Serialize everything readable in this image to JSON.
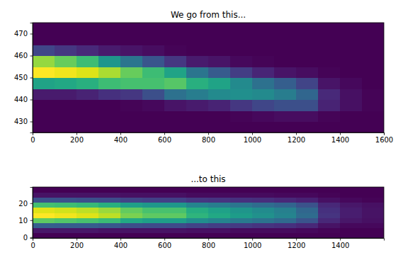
{
  "chart_data": [
    {
      "type": "heatmap",
      "title": "We go from this...",
      "xlim": [
        0,
        1600
      ],
      "ylim": [
        425,
        475
      ],
      "xticks": [
        0,
        200,
        400,
        600,
        800,
        1000,
        1200,
        1400,
        1600
      ],
      "yticks": [
        430,
        440,
        450,
        460,
        470
      ],
      "x_edges": [
        0,
        100,
        200,
        300,
        400,
        500,
        600,
        700,
        800,
        900,
        1000,
        1100,
        1200,
        1300,
        1400,
        1500,
        1600
      ],
      "y_edges": [
        425,
        430,
        435,
        440,
        445,
        450,
        455,
        460,
        465,
        470,
        475
      ],
      "cells": [
        [
          0.05,
          0.05,
          0.05,
          0.12,
          0.6,
          1.0,
          0.85,
          0.25,
          0.05,
          0.05
        ],
        [
          0.05,
          0.05,
          0.05,
          0.12,
          0.62,
          0.98,
          0.78,
          0.2,
          0.05,
          0.05
        ],
        [
          0.05,
          0.05,
          0.05,
          0.14,
          0.65,
          0.95,
          0.7,
          0.16,
          0.05,
          0.05
        ],
        [
          0.05,
          0.05,
          0.05,
          0.18,
          0.7,
          0.88,
          0.55,
          0.12,
          0.05,
          0.05
        ],
        [
          0.05,
          0.05,
          0.06,
          0.2,
          0.72,
          0.78,
          0.42,
          0.1,
          0.05,
          0.05
        ],
        [
          0.05,
          0.05,
          0.07,
          0.28,
          0.72,
          0.7,
          0.3,
          0.08,
          0.05,
          0.05
        ],
        [
          0.05,
          0.05,
          0.1,
          0.4,
          0.75,
          0.6,
          0.2,
          0.06,
          0.05,
          0.05
        ],
        [
          0.05,
          0.05,
          0.12,
          0.45,
          0.65,
          0.42,
          0.12,
          0.05,
          0.05,
          0.05
        ],
        [
          0.05,
          0.05,
          0.14,
          0.5,
          0.6,
          0.32,
          0.1,
          0.05,
          0.05,
          0.05
        ],
        [
          0.05,
          0.06,
          0.2,
          0.52,
          0.5,
          0.22,
          0.07,
          0.05,
          0.05,
          0.05
        ],
        [
          0.05,
          0.07,
          0.25,
          0.5,
          0.4,
          0.15,
          0.06,
          0.05,
          0.05,
          0.05
        ],
        [
          0.05,
          0.08,
          0.28,
          0.45,
          0.33,
          0.1,
          0.05,
          0.05,
          0.05,
          0.05
        ],
        [
          0.05,
          0.08,
          0.28,
          0.36,
          0.24,
          0.08,
          0.05,
          0.05,
          0.05,
          0.05
        ],
        [
          0.05,
          0.06,
          0.14,
          0.16,
          0.1,
          0.06,
          0.05,
          0.05,
          0.05,
          0.05
        ],
        [
          0.05,
          0.05,
          0.09,
          0.09,
          0.07,
          0.05,
          0.05,
          0.05,
          0.05,
          0.05
        ],
        [
          0.05,
          0.05,
          0.06,
          0.06,
          0.05,
          0.05,
          0.05,
          0.05,
          0.05,
          0.05
        ]
      ]
    },
    {
      "type": "heatmap",
      "title": "...to this",
      "xlim": [
        -0.5,
        1599.5
      ],
      "ylim": [
        -0.5,
        29.5
      ],
      "xticks": [
        0,
        200,
        400,
        600,
        800,
        1000,
        1200,
        1400
      ],
      "yticks": [
        0,
        10,
        20
      ],
      "x_edges": [
        -0.5,
        99.5,
        199.5,
        299.5,
        399.5,
        499.5,
        599.5,
        699.5,
        799.5,
        899.5,
        999.5,
        1099.5,
        1199.5,
        1299.5,
        1399.5,
        1499.5,
        1599.5
      ],
      "y_edges": [
        -0.5,
        2.5,
        5.5,
        8.5,
        11.5,
        14.5,
        17.5,
        20.5,
        23.5,
        26.5,
        29.5
      ],
      "cells": [
        [
          0.05,
          0.11,
          0.35,
          0.8,
          1.05,
          1.0,
          0.75,
          0.3,
          0.1,
          0.05
        ],
        [
          0.05,
          0.11,
          0.34,
          0.78,
          1.03,
          0.98,
          0.74,
          0.3,
          0.1,
          0.05
        ],
        [
          0.05,
          0.11,
          0.34,
          0.76,
          1.0,
          0.95,
          0.72,
          0.29,
          0.1,
          0.05
        ],
        [
          0.05,
          0.1,
          0.32,
          0.73,
          0.95,
          0.9,
          0.68,
          0.28,
          0.1,
          0.05
        ],
        [
          0.05,
          0.1,
          0.29,
          0.65,
          0.85,
          0.81,
          0.61,
          0.25,
          0.09,
          0.05
        ],
        [
          0.05,
          0.1,
          0.28,
          0.61,
          0.8,
          0.76,
          0.58,
          0.24,
          0.09,
          0.05
        ],
        [
          0.05,
          0.1,
          0.28,
          0.61,
          0.8,
          0.76,
          0.58,
          0.24,
          0.09,
          0.05
        ],
        [
          0.05,
          0.09,
          0.25,
          0.54,
          0.7,
          0.67,
          0.5,
          0.21,
          0.08,
          0.05
        ],
        [
          0.05,
          0.09,
          0.23,
          0.5,
          0.65,
          0.62,
          0.47,
          0.2,
          0.08,
          0.05
        ],
        [
          0.05,
          0.08,
          0.22,
          0.46,
          0.6,
          0.57,
          0.44,
          0.19,
          0.08,
          0.05
        ],
        [
          0.05,
          0.08,
          0.2,
          0.43,
          0.55,
          0.53,
          0.4,
          0.18,
          0.08,
          0.05
        ],
        [
          0.05,
          0.08,
          0.19,
          0.39,
          0.5,
          0.48,
          0.37,
          0.16,
          0.07,
          0.05
        ],
        [
          0.05,
          0.07,
          0.16,
          0.31,
          0.4,
          0.38,
          0.3,
          0.14,
          0.07,
          0.05
        ],
        [
          0.05,
          0.06,
          0.1,
          0.16,
          0.2,
          0.19,
          0.16,
          0.09,
          0.06,
          0.05
        ],
        [
          0.05,
          0.05,
          0.07,
          0.11,
          0.13,
          0.13,
          0.11,
          0.07,
          0.05,
          0.05
        ],
        [
          0.05,
          0.05,
          0.07,
          0.09,
          0.1,
          0.1,
          0.09,
          0.06,
          0.05,
          0.05
        ]
      ]
    }
  ]
}
